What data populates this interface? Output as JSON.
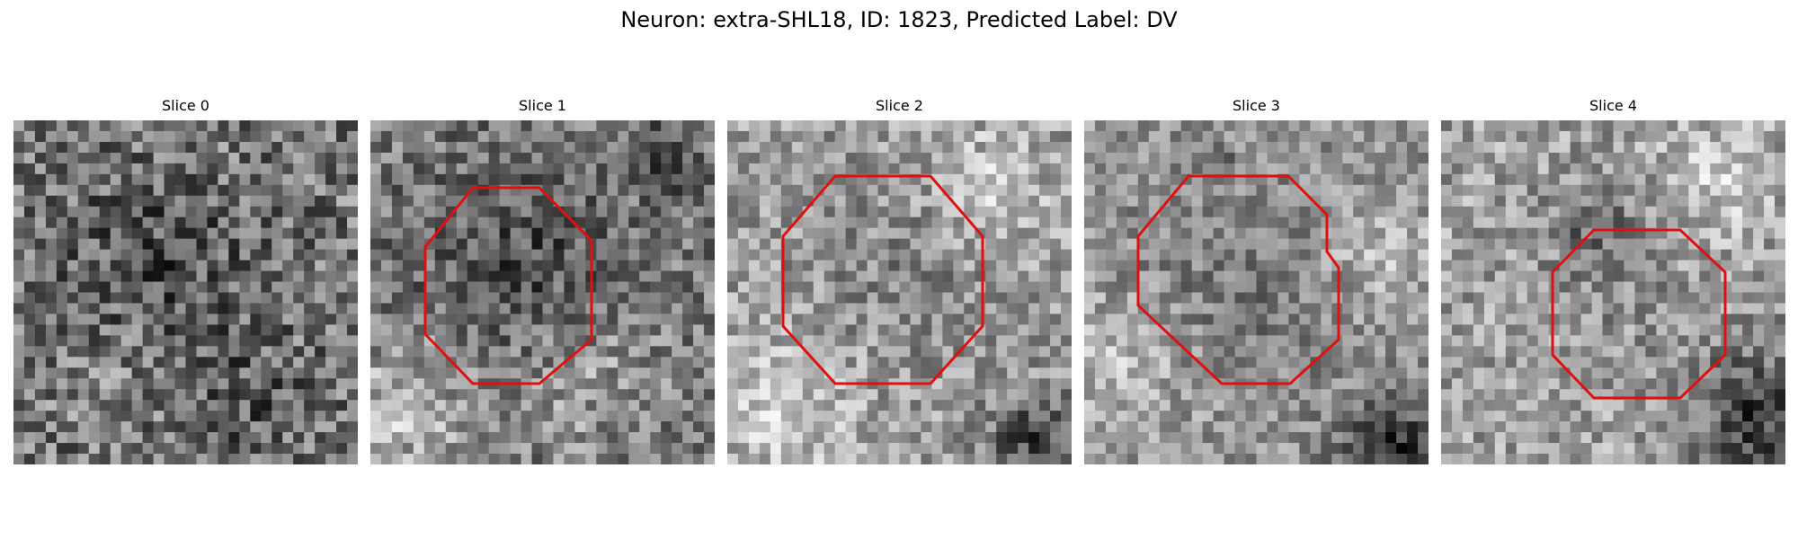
{
  "figure": {
    "title": "Neuron: extra-SHL18, ID: 1823, Predicted Label: DV",
    "outline_color": "#e01010",
    "cmap": "gray"
  },
  "panels": [
    {
      "title": "Slice 0",
      "has_outline": false,
      "seed": 11,
      "blobs": []
    },
    {
      "title": "Slice 1",
      "has_outline": true,
      "seed": 23,
      "blobs": []
    },
    {
      "title": "Slice 2",
      "has_outline": true,
      "seed": 37,
      "blobs": []
    },
    {
      "title": "Slice 3",
      "has_outline": true,
      "seed": 41,
      "blobs": []
    },
    {
      "title": "Slice 4",
      "has_outline": true,
      "seed": 53,
      "blobs": []
    }
  ]
}
